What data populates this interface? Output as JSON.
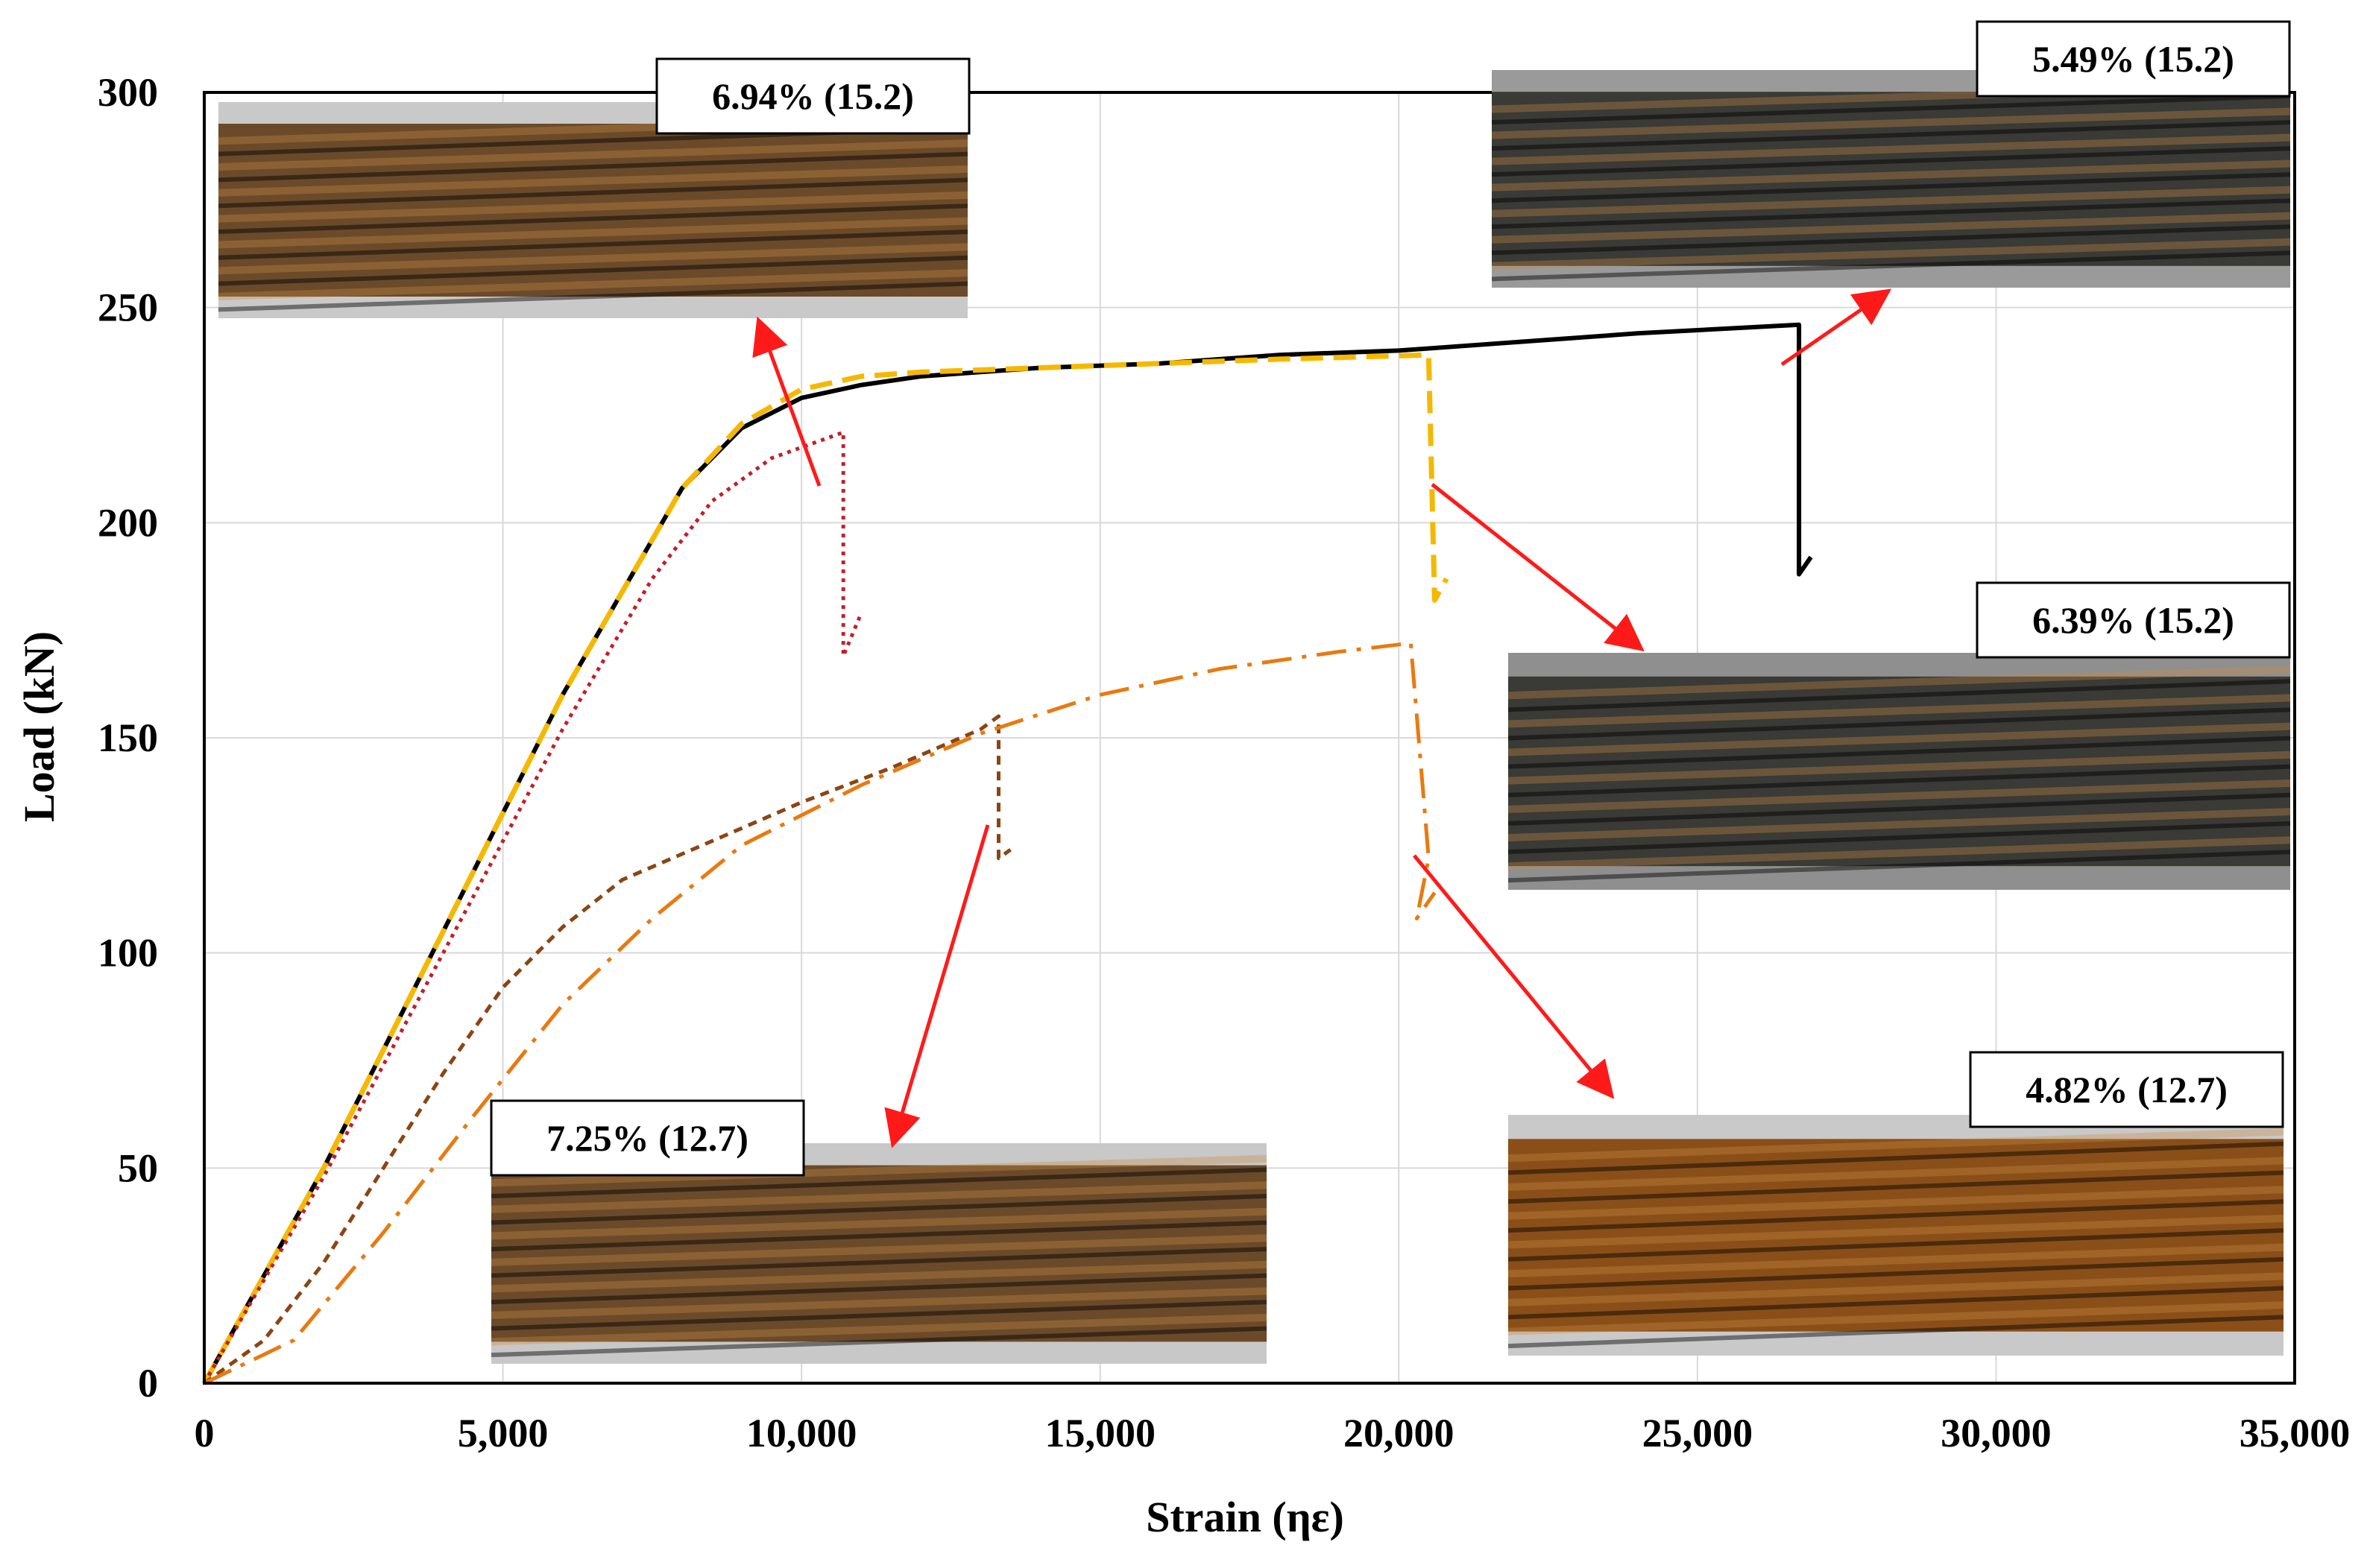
{
  "chart_data": {
    "type": "line",
    "title": "",
    "xlabel": "Strain (ηε)",
    "ylabel": "Load (kN)",
    "xlim": [
      0,
      35000
    ],
    "ylim": [
      0,
      300
    ],
    "xticks": [
      0,
      5000,
      10000,
      15000,
      20000,
      25000,
      30000,
      35000
    ],
    "xtick_labels": [
      "0",
      "5,000",
      "10,000",
      "15,000",
      "20,000",
      "25,000",
      "30,000",
      "35,000"
    ],
    "yticks": [
      0,
      50,
      100,
      150,
      200,
      250,
      300
    ],
    "ytick_labels": [
      "0",
      "50",
      "100",
      "150",
      "200",
      "250",
      "300"
    ],
    "grid": true,
    "legend": "none",
    "series": [
      {
        "color": "#000000",
        "style": "solid",
        "points": [
          [
            0,
            0
          ],
          [
            2000,
            50
          ],
          [
            4000,
            105
          ],
          [
            6000,
            160
          ],
          [
            8000,
            208
          ],
          [
            9000,
            222
          ],
          [
            10000,
            229
          ],
          [
            11000,
            232
          ],
          [
            12000,
            234
          ],
          [
            14000,
            236
          ],
          [
            16000,
            237
          ],
          [
            18000,
            239
          ],
          [
            20000,
            240
          ],
          [
            22000,
            242
          ],
          [
            24000,
            244
          ],
          [
            26700,
            246
          ],
          [
            26700,
            188
          ],
          [
            26900,
            192
          ]
        ]
      },
      {
        "color": "#f5b800",
        "style": "dashed",
        "points": [
          [
            0,
            0
          ],
          [
            2000,
            50
          ],
          [
            4000,
            105
          ],
          [
            6000,
            160
          ],
          [
            8000,
            208
          ],
          [
            9000,
            223
          ],
          [
            10000,
            231
          ],
          [
            11000,
            234
          ],
          [
            12000,
            235
          ],
          [
            14000,
            236
          ],
          [
            16000,
            237
          ],
          [
            18000,
            238
          ],
          [
            20500,
            239
          ],
          [
            20600,
            182
          ],
          [
            20800,
            187
          ]
        ]
      },
      {
        "color": "#c0202a",
        "style": "dotted",
        "points": [
          [
            0,
            0
          ],
          [
            2000,
            48
          ],
          [
            4000,
            100
          ],
          [
            6000,
            152
          ],
          [
            7500,
            187
          ],
          [
            8500,
            205
          ],
          [
            9500,
            215
          ],
          [
            10500,
            220
          ],
          [
            10700,
            221
          ],
          [
            10700,
            169
          ],
          [
            11000,
            179
          ]
        ]
      },
      {
        "color": "#8b4513",
        "style": "short-dash",
        "points": [
          [
            0,
            0
          ],
          [
            1000,
            10
          ],
          [
            2000,
            28
          ],
          [
            3000,
            50
          ],
          [
            4000,
            72
          ],
          [
            5000,
            92
          ],
          [
            6000,
            106
          ],
          [
            7000,
            117
          ],
          [
            8500,
            126
          ],
          [
            10000,
            135
          ],
          [
            11500,
            143
          ],
          [
            13000,
            152
          ],
          [
            13300,
            155
          ],
          [
            13300,
            122
          ],
          [
            13500,
            124
          ]
        ]
      },
      {
        "color": "#e87a10",
        "style": "dash-dot",
        "points": [
          [
            0,
            0
          ],
          [
            1500,
            10
          ],
          [
            3000,
            35
          ],
          [
            4500,
            62
          ],
          [
            6000,
            88
          ],
          [
            7500,
            108
          ],
          [
            9000,
            125
          ],
          [
            11000,
            139
          ],
          [
            13000,
            151
          ],
          [
            15000,
            160
          ],
          [
            17000,
            166
          ],
          [
            19000,
            170
          ],
          [
            20200,
            172
          ],
          [
            20500,
            122
          ],
          [
            20300,
            108
          ],
          [
            20600,
            114
          ]
        ]
      }
    ],
    "annotations": [
      {
        "label": "6.94% (15.2)"
      },
      {
        "label": "5.49% (15.2)"
      },
      {
        "label": "6.39% (15.2)"
      },
      {
        "label": "7.25% (12.7)"
      },
      {
        "label": "4.82% (12.7)"
      }
    ]
  },
  "photo_colors": {
    "rusty": "#6b4a2a",
    "dark": "#3a3a36",
    "very_rusty": "#8a4f18",
    "arrow": "#ff1a1a"
  }
}
